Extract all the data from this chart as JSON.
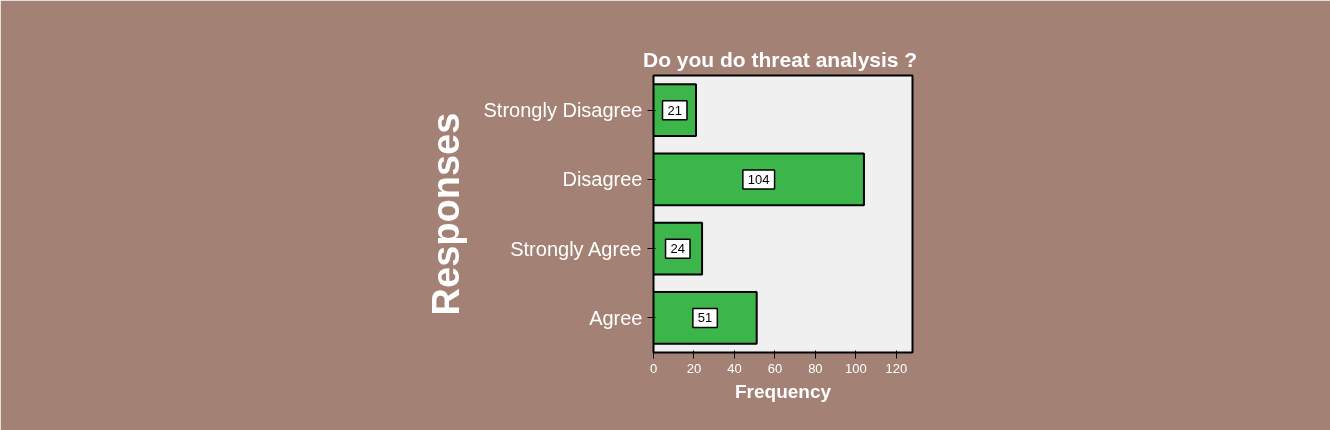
{
  "chart_data": {
    "type": "bar",
    "orientation": "horizontal",
    "title": "Do you do  threat analysis ?",
    "xlabel": "Frequency",
    "ylabel": "Responses",
    "categories": [
      "Strongly Disagree",
      "Disagree",
      "Strongly Agree",
      "Agree"
    ],
    "values": [
      21,
      104,
      24,
      51
    ],
    "color": "#3cb54a",
    "xlim": [
      0,
      128
    ],
    "xticks": [
      0,
      20,
      40,
      60,
      80,
      100,
      120
    ],
    "data_labels": true
  }
}
